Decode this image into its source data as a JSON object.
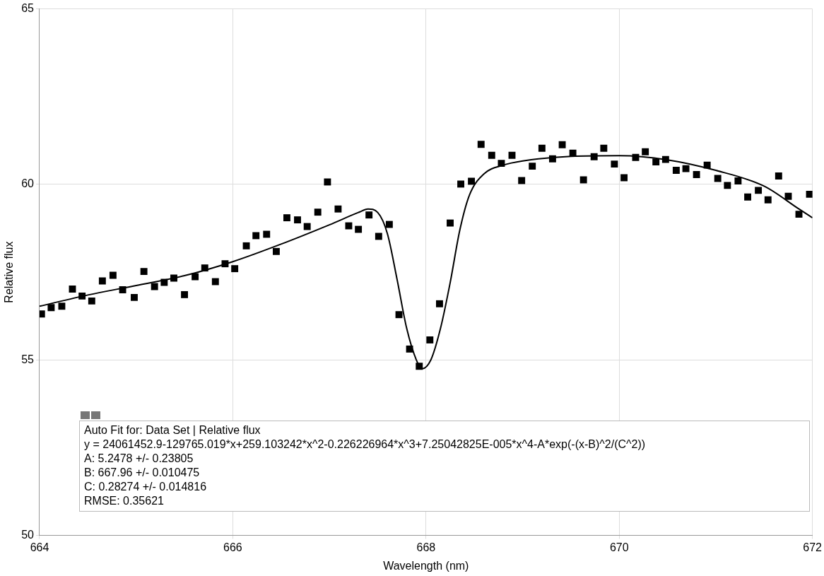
{
  "chart_data": {
    "type": "scatter",
    "xlabel": "Wavelength (nm)",
    "ylabel": "Relative flux",
    "xlim": [
      664,
      672
    ],
    "ylim": [
      50,
      65
    ],
    "xticks": [
      664,
      666,
      668,
      670,
      672
    ],
    "yticks": [
      50,
      55,
      60,
      65
    ],
    "grid": true,
    "legend": false,
    "series": [
      {
        "color": "#000000",
        "marker": "square",
        "x": [
          664.02,
          664.12,
          664.23,
          664.34,
          664.44,
          664.54,
          664.65,
          664.76,
          664.86,
          664.98,
          665.08,
          665.19,
          665.29,
          665.39,
          665.5,
          665.61,
          665.71,
          665.82,
          665.92,
          666.02,
          666.14,
          666.24,
          666.35,
          666.45,
          666.56,
          666.67,
          666.77,
          666.88,
          666.98,
          667.09,
          667.2,
          667.3,
          667.41,
          667.51,
          667.62,
          667.72,
          667.83,
          667.93,
          668.04,
          668.14,
          668.25,
          668.36,
          668.47,
          668.57,
          668.68,
          668.78,
          668.89,
          668.99,
          669.1,
          669.2,
          669.31,
          669.41,
          669.52,
          669.63,
          669.74,
          669.84,
          669.95,
          670.05,
          670.17,
          670.27,
          670.38,
          670.48,
          670.59,
          670.69,
          670.8,
          670.91,
          671.02,
          671.12,
          671.23,
          671.33,
          671.44,
          671.54,
          671.65,
          671.75,
          671.86,
          671.97
        ],
        "values": [
          56.31,
          56.49,
          56.53,
          57.02,
          56.82,
          56.68,
          57.25,
          57.41,
          57.0,
          56.78,
          57.52,
          57.09,
          57.21,
          57.33,
          56.86,
          57.37,
          57.62,
          57.23,
          57.74,
          57.6,
          58.25,
          58.54,
          58.58,
          58.09,
          59.05,
          58.99,
          58.8,
          59.21,
          60.07,
          59.3,
          58.82,
          58.72,
          59.13,
          58.52,
          58.86,
          56.29,
          55.31,
          54.82,
          55.57,
          56.6,
          58.9,
          60.01,
          60.09,
          61.14,
          60.83,
          60.6,
          60.83,
          60.11,
          60.52,
          61.03,
          60.73,
          61.13,
          60.89,
          60.13,
          60.79,
          61.03,
          60.58,
          60.19,
          60.77,
          60.93,
          60.64,
          60.71,
          60.4,
          60.45,
          60.28,
          60.55,
          60.17,
          59.97,
          60.1,
          59.64,
          59.83,
          59.56,
          60.24,
          59.66,
          59.15,
          59.72
        ]
      },
      {
        "type": "line",
        "color": "#000000",
        "marker": "none",
        "x": [
          664.0,
          664.5,
          665.0,
          665.5,
          666.0,
          666.5,
          667.0,
          667.3,
          667.4,
          667.5,
          667.6,
          667.7,
          667.8,
          667.9,
          667.96,
          668.05,
          668.15,
          668.25,
          668.35,
          668.45,
          668.6,
          668.8,
          669.0,
          669.5,
          670.0,
          670.5,
          671.0,
          671.5,
          671.86,
          672.0
        ],
        "values": [
          56.53,
          56.85,
          57.12,
          57.4,
          57.8,
          58.3,
          58.85,
          59.2,
          59.3,
          59.2,
          58.6,
          57.3,
          55.9,
          55.0,
          54.75,
          55.0,
          55.9,
          57.2,
          58.7,
          59.7,
          60.3,
          60.55,
          60.67,
          60.8,
          60.82,
          60.7,
          60.4,
          59.95,
          59.3,
          59.05
        ]
      }
    ],
    "annotations": [
      "Auto Fit for: Data Set | Relative flux",
      "y = 24061452.9-129765.019*x+259.103242*x^2-0.226226964*x^3+7.25042825E-005*x^4-A*exp(-(x-B)^2/(C^2))",
      "A: 5.2478 +/- 0.23805",
      "B: 667.96 +/- 0.010475",
      "C: 0.28274 +/- 0.014816",
      "RMSE: 0.35621"
    ]
  }
}
